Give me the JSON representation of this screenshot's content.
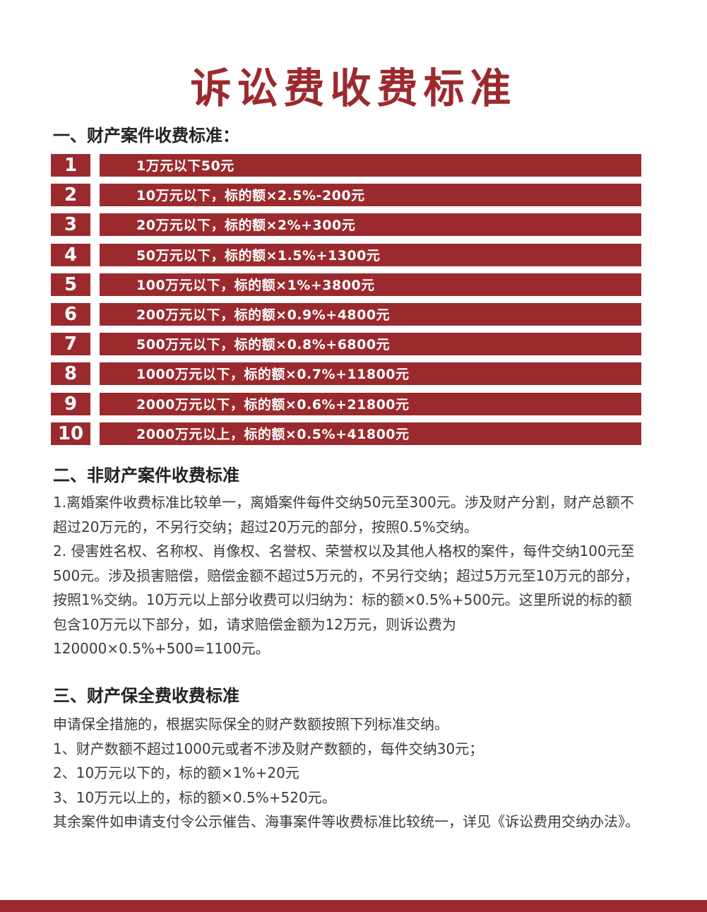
{
  "title": "诉讼费收费标准",
  "section1": {
    "heading": "一、财产案件收费标准：",
    "rows": [
      {
        "number": "1",
        "text": "1万元以下50元"
      },
      {
        "number": "2",
        "text": "10万元以下，标的额×2.5%-200元"
      },
      {
        "number": "3",
        "text": "20万元以下，标的额×2%+300元"
      },
      {
        "number": "4",
        "text": "50万元以下，标的额×1.5%+1300元"
      },
      {
        "number": "5",
        "text": "100万元以下，标的额×1%+3800元"
      },
      {
        "number": "6",
        "text": "200万元以下，标的额×0.9%+4800元"
      },
      {
        "number": "7",
        "text": "500万元以下，标的额×0.8%+6800元"
      },
      {
        "number": "8",
        "text": "1000万元以下，标的额×0.7%+11800元"
      },
      {
        "number": "9",
        "text": "2000万元以下，标的额×0.6%+21800元"
      },
      {
        "number": "10",
        "text": "2000万元以上，标的额×0.5%+41800元"
      }
    ]
  },
  "section2": {
    "heading": "二、非财产案件收费标准",
    "paragraphs": [
      "1.离婚案件收费标准比较单一，离婚案件每件交纳50元至300元。涉及财产分割，财产总额不超过20万元的，不另行交纳；超过20万元的部分，按照0.5%交纳。",
      "2. 侵害姓名权、名称权、肖像权、名誉权、荣誉权以及其他人格权的案件，每件交纳100元至500元。涉及损害赔偿，赔偿金额不超过5万元的，不另行交纳；超过5万元至10万元的部分，按照1%交纳。10万元以上部分收费可以归纳为：标的额×0.5%+500元。这里所说的标的额包含10万元以下部分，如，请求赔偿金额为12万元，则诉讼费为120000×0.5%+500=1100元。"
    ]
  },
  "section3": {
    "heading": "三、财产保全费收费标准",
    "lines": [
      "申请保全措施的，根据实际保全的财产数额按照下列标准交纳。",
      "1、财产数额不超过1000元或者不涉及财产数额的，每件交纳30元；",
      "2、10万元以下的，标的额×1%+20元",
      "3、10万元以上的，标的额×0.5%+520元。",
      "其余案件如申请支付令公示催告、海事案件等收费标准比较统一，详见《诉讼费用交纳办法》。"
    ]
  }
}
